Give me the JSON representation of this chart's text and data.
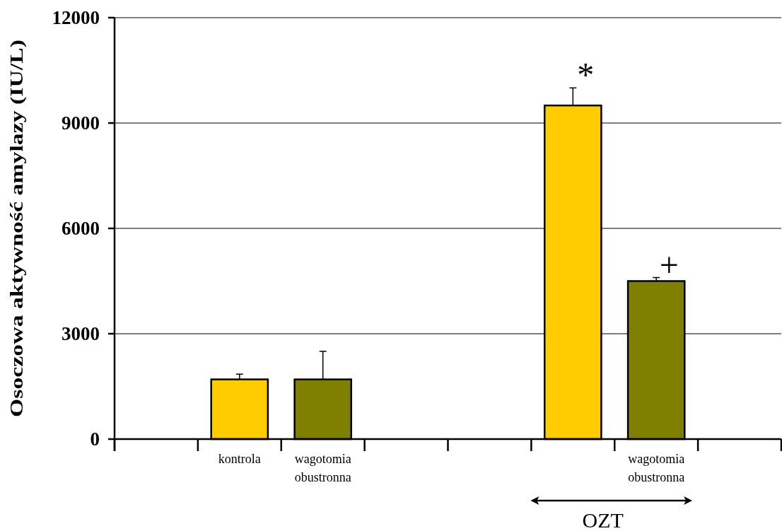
{
  "chart_data": {
    "type": "bar",
    "ylabel": "Osoczowa aktywność amylazy (IU/L)",
    "categories": [
      null,
      "kontrola",
      "wagotomia obustronna",
      null,
      null,
      null,
      "wagotomia obustronna",
      null
    ],
    "values": [
      null,
      1700,
      1700,
      null,
      null,
      9500,
      4500,
      null
    ],
    "colors": [
      null,
      "#ffcc00",
      "#808000",
      null,
      null,
      "#ffcc00",
      "#808000",
      null
    ],
    "errors": [
      null,
      [
        1700,
        1850
      ],
      [
        1700,
        2500
      ],
      null,
      null,
      [
        9500,
        10000
      ],
      [
        4500,
        4600
      ],
      null
    ],
    "value_labels": [
      null,
      null,
      null,
      null,
      null,
      "*",
      "+",
      null
    ],
    "annotations": [
      "OZT"
    ],
    "ylim": [
      0,
      12000
    ],
    "yticks": [
      0,
      3000,
      6000,
      9000,
      12000
    ],
    "grid": "y"
  }
}
